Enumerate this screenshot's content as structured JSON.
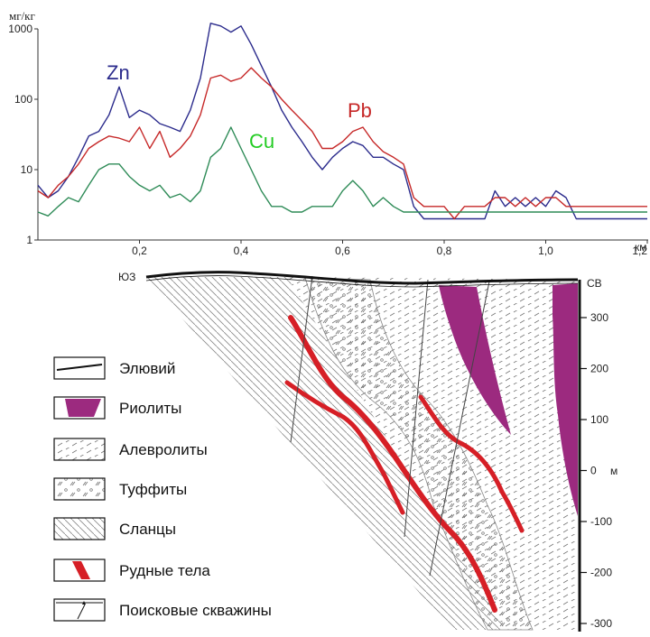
{
  "chart_data": {
    "type": "line",
    "yunit": "мг/кг",
    "xunit": "км",
    "yscale": "log",
    "ylim": [
      1,
      1000
    ],
    "xlim": [
      0,
      1.2
    ],
    "yticks": [
      "1",
      "10",
      "100",
      "1000"
    ],
    "xticks": [
      "0,2",
      "0,4",
      "0,6",
      "0,8",
      "1,0",
      "1,2"
    ],
    "grid": false,
    "series": [
      {
        "name": "Zn",
        "color": "#2b2b8c",
        "x": [
          0,
          0.02,
          0.04,
          0.06,
          0.08,
          0.1,
          0.12,
          0.14,
          0.16,
          0.18,
          0.2,
          0.22,
          0.24,
          0.26,
          0.28,
          0.3,
          0.32,
          0.34,
          0.36,
          0.38,
          0.4,
          0.42,
          0.44,
          0.46,
          0.48,
          0.5,
          0.52,
          0.54,
          0.56,
          0.58,
          0.6,
          0.62,
          0.64,
          0.66,
          0.68,
          0.7,
          0.72,
          0.74,
          0.76,
          0.78,
          0.8,
          0.82,
          0.84,
          0.86,
          0.88,
          0.9,
          0.92,
          0.94,
          0.96,
          0.98,
          1.0,
          1.02,
          1.04,
          1.06,
          1.08,
          1.1,
          1.12,
          1.14,
          1.16,
          1.18,
          1.2
        ],
        "values": [
          6,
          4,
          5,
          8,
          15,
          30,
          35,
          60,
          150,
          55,
          70,
          60,
          45,
          40,
          35,
          70,
          200,
          1200,
          1100,
          900,
          1100,
          600,
          300,
          150,
          70,
          40,
          25,
          15,
          10,
          15,
          20,
          25,
          22,
          15,
          15,
          12,
          10,
          3,
          2,
          2,
          2,
          2,
          2,
          2,
          2,
          5,
          3,
          4,
          3,
          4,
          3,
          5,
          4,
          2,
          2,
          2,
          2,
          2,
          2,
          2,
          2
        ]
      },
      {
        "name": "Pb",
        "color": "#c62828",
        "x": [
          0,
          0.02,
          0.04,
          0.06,
          0.08,
          0.1,
          0.12,
          0.14,
          0.16,
          0.18,
          0.2,
          0.22,
          0.24,
          0.26,
          0.28,
          0.3,
          0.32,
          0.34,
          0.36,
          0.38,
          0.4,
          0.42,
          0.44,
          0.46,
          0.48,
          0.5,
          0.52,
          0.54,
          0.56,
          0.58,
          0.6,
          0.62,
          0.64,
          0.66,
          0.68,
          0.7,
          0.72,
          0.74,
          0.76,
          0.78,
          0.8,
          0.82,
          0.84,
          0.86,
          0.88,
          0.9,
          0.92,
          0.94,
          0.96,
          0.98,
          1.0,
          1.02,
          1.04,
          1.06,
          1.08,
          1.1,
          1.12,
          1.14,
          1.16,
          1.18,
          1.2
        ],
        "values": [
          5,
          4,
          6,
          8,
          12,
          20,
          25,
          30,
          28,
          25,
          40,
          20,
          35,
          15,
          20,
          30,
          60,
          200,
          220,
          180,
          200,
          280,
          200,
          150,
          100,
          70,
          50,
          35,
          20,
          20,
          25,
          35,
          40,
          25,
          18,
          15,
          12,
          4,
          3,
          3,
          3,
          2,
          3,
          3,
          3,
          4,
          4,
          3,
          4,
          3,
          4,
          4,
          3,
          3,
          3,
          3,
          3,
          3,
          3,
          3,
          3
        ]
      },
      {
        "name": "Cu",
        "color": "#2e8b57",
        "x": [
          0,
          0.02,
          0.04,
          0.06,
          0.08,
          0.1,
          0.12,
          0.14,
          0.16,
          0.18,
          0.2,
          0.22,
          0.24,
          0.26,
          0.28,
          0.3,
          0.32,
          0.34,
          0.36,
          0.38,
          0.4,
          0.42,
          0.44,
          0.46,
          0.48,
          0.5,
          0.52,
          0.54,
          0.56,
          0.58,
          0.6,
          0.62,
          0.64,
          0.66,
          0.68,
          0.7,
          0.72,
          0.74,
          0.76,
          0.78,
          0.8,
          0.82,
          0.84,
          0.86,
          0.88,
          0.9,
          0.92,
          0.94,
          0.96,
          0.98,
          1.0,
          1.02,
          1.04,
          1.06,
          1.08,
          1.1,
          1.12,
          1.14,
          1.16,
          1.18,
          1.2
        ],
        "values": [
          2.5,
          2.2,
          3,
          4,
          3.5,
          6,
          10,
          12,
          12,
          8,
          6,
          5,
          6,
          4,
          4.5,
          3.5,
          5,
          15,
          20,
          40,
          20,
          10,
          5,
          3,
          3,
          2.5,
          2.5,
          3,
          3,
          3,
          5,
          7,
          5,
          3,
          4,
          3,
          2.5,
          2.5,
          2.5,
          2.5,
          2.5,
          2.5,
          2.5,
          2.5,
          2.5,
          2.5,
          2.5,
          2.5,
          2.5,
          2.5,
          2.5,
          2.5,
          2.5,
          2.5,
          2.5,
          2.5,
          2.5,
          2.5,
          2.5,
          2.5,
          2.5
        ]
      }
    ]
  },
  "section": {
    "left_label": "ЮЗ",
    "right_label": "СВ",
    "depth_unit": "м",
    "depth_ticks": [
      "300",
      "200",
      "100",
      "0",
      "-100",
      "-200",
      "-300"
    ]
  },
  "legend": {
    "items": [
      {
        "label": "Элювий",
        "icon": "eluvium-swatch"
      },
      {
        "label": "Риолиты",
        "icon": "rhyolite-swatch"
      },
      {
        "label": "Алевролиты",
        "icon": "siltstone-swatch"
      },
      {
        "label": "Туффиты",
        "icon": "tuffite-swatch"
      },
      {
        "label": "Сланцы",
        "icon": "shale-swatch"
      },
      {
        "label": "Рудные тела",
        "icon": "ore-body-swatch"
      },
      {
        "label": "Поисковые скважины",
        "icon": "borehole-swatch"
      }
    ]
  },
  "colors": {
    "rhyolite": "#9c2a7f",
    "ore": "#d61f26",
    "line": "#555555"
  }
}
